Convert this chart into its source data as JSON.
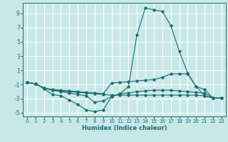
{
  "title": "",
  "xlabel": "Humidex (Indice chaleur)",
  "xlim": [
    -0.5,
    23.5
  ],
  "ylim": [
    -5.5,
    10.5
  ],
  "yticks": [
    -5,
    -3,
    -1,
    1,
    3,
    5,
    7,
    9
  ],
  "xticks": [
    0,
    1,
    2,
    3,
    4,
    5,
    6,
    7,
    8,
    9,
    10,
    11,
    12,
    13,
    14,
    15,
    16,
    17,
    18,
    19,
    20,
    21,
    22,
    23
  ],
  "bg_color": "#c8e8e8",
  "grid_color": "#ffffff",
  "line_color": "#1a6b6e",
  "curves": [
    {
      "x": [
        0,
        1,
        2,
        3,
        4,
        5,
        6,
        7,
        8,
        9,
        10,
        11,
        12,
        13,
        14,
        15,
        16,
        17,
        18,
        19,
        20,
        21,
        22,
        23
      ],
      "y": [
        -0.7,
        -0.9,
        -1.6,
        -2.4,
        -2.6,
        -3.2,
        -3.8,
        -4.6,
        -4.8,
        -4.6,
        -2.7,
        -2.3,
        -1.3,
        6.0,
        9.8,
        9.5,
        9.3,
        7.3,
        3.7,
        0.6,
        -1.3,
        -2.6,
        -2.9,
        -2.9
      ]
    },
    {
      "x": [
        0,
        1,
        2,
        3,
        4,
        5,
        6,
        7,
        8,
        9,
        10,
        11,
        12,
        13,
        14,
        15,
        16,
        17,
        18,
        19,
        20,
        21,
        22,
        23
      ],
      "y": [
        -0.7,
        -0.9,
        -1.5,
        -1.7,
        -1.8,
        -1.9,
        -2.0,
        -2.1,
        -2.2,
        -2.3,
        -0.8,
        -0.7,
        -0.6,
        -0.5,
        -0.4,
        -0.3,
        0.0,
        0.5,
        0.5,
        0.5,
        -1.3,
        -1.7,
        -2.9,
        -2.9
      ]
    },
    {
      "x": [
        0,
        1,
        2,
        3,
        4,
        5,
        6,
        7,
        8,
        9,
        10,
        11,
        12,
        13,
        14,
        15,
        16,
        17,
        18,
        19,
        20,
        21,
        22,
        23
      ],
      "y": [
        -0.7,
        -0.9,
        -1.5,
        -1.8,
        -1.9,
        -2.0,
        -2.1,
        -2.2,
        -2.3,
        -2.4,
        -2.5,
        -2.5,
        -2.5,
        -2.5,
        -2.5,
        -2.5,
        -2.5,
        -2.5,
        -2.5,
        -2.5,
        -2.5,
        -2.6,
        -2.9,
        -2.9
      ]
    },
    {
      "x": [
        0,
        1,
        2,
        3,
        4,
        5,
        6,
        7,
        8,
        9,
        10,
        11,
        12,
        13,
        14,
        15,
        16,
        17,
        18,
        19,
        20,
        21,
        22,
        23
      ],
      "y": [
        -0.7,
        -0.9,
        -1.5,
        -1.8,
        -2.0,
        -2.2,
        -2.4,
        -2.6,
        -3.5,
        -3.3,
        -2.7,
        -2.3,
        -2.2,
        -2.0,
        -1.9,
        -1.8,
        -1.8,
        -1.8,
        -1.9,
        -2.0,
        -2.1,
        -2.2,
        -2.9,
        -2.9
      ]
    }
  ]
}
